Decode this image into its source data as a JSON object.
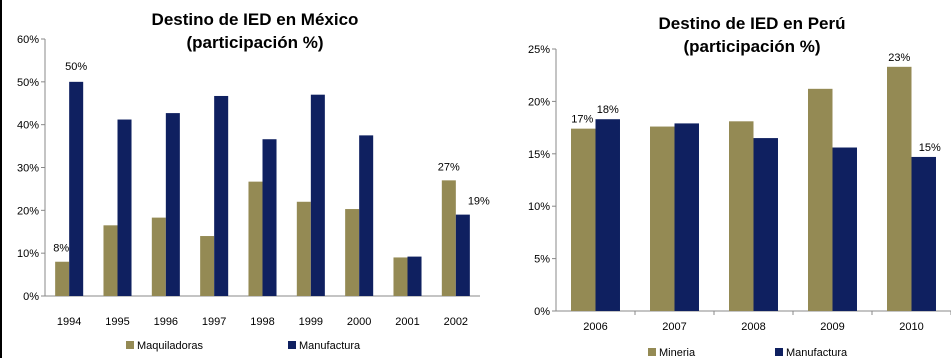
{
  "chart_data": [
    {
      "type": "bar",
      "title_line1": "Destino de IED en México",
      "title_line2": "(participación %)",
      "categories": [
        "1994",
        "1995",
        "1996",
        "1997",
        "1998",
        "1999",
        "2000",
        "2001",
        "2002"
      ],
      "ylim": [
        0,
        60
      ],
      "yticks": [
        "0%",
        "10%",
        "20%",
        "30%",
        "40%",
        "50%",
        "60%"
      ],
      "series": [
        {
          "name": "Maquiladoras",
          "color": "#948a54",
          "values": [
            8,
            16.5,
            18.3,
            14,
            26.7,
            22,
            20.3,
            9,
            27
          ]
        },
        {
          "name": "Manufactura",
          "color": "#0f2060",
          "values": [
            50,
            41.2,
            42.7,
            46.7,
            36.6,
            47,
            37.5,
            9.2,
            19
          ]
        }
      ],
      "data_labels": [
        {
          "series": 0,
          "index": 0,
          "text": "8%"
        },
        {
          "series": 1,
          "index": 0,
          "text": "50%"
        },
        {
          "series": 0,
          "index": 8,
          "text": "27%"
        },
        {
          "series": 1,
          "index": 8,
          "text": "19%"
        }
      ],
      "legend_position": "bottom"
    },
    {
      "type": "bar",
      "title_line1": "Destino de IED en Perú",
      "title_line2": "(participación %)",
      "categories": [
        "2006",
        "2007",
        "2008",
        "2009",
        "2010"
      ],
      "ylim": [
        0,
        25
      ],
      "yticks": [
        "0%",
        "5%",
        "10%",
        "15%",
        "20%",
        "25%"
      ],
      "series": [
        {
          "name": "Mineria",
          "color": "#948a54",
          "values": [
            17.4,
            17.6,
            18.1,
            21.2,
            23.3
          ]
        },
        {
          "name": "Manufactura",
          "color": "#0f2060",
          "values": [
            18.3,
            17.9,
            16.5,
            15.6,
            14.7
          ]
        }
      ],
      "data_labels": [
        {
          "series": 0,
          "index": 0,
          "text": "17%"
        },
        {
          "series": 1,
          "index": 0,
          "text": "18%"
        },
        {
          "series": 0,
          "index": 4,
          "text": "23%"
        },
        {
          "series": 1,
          "index": 4,
          "text": "15%"
        }
      ],
      "legend_position": "bottom"
    }
  ]
}
